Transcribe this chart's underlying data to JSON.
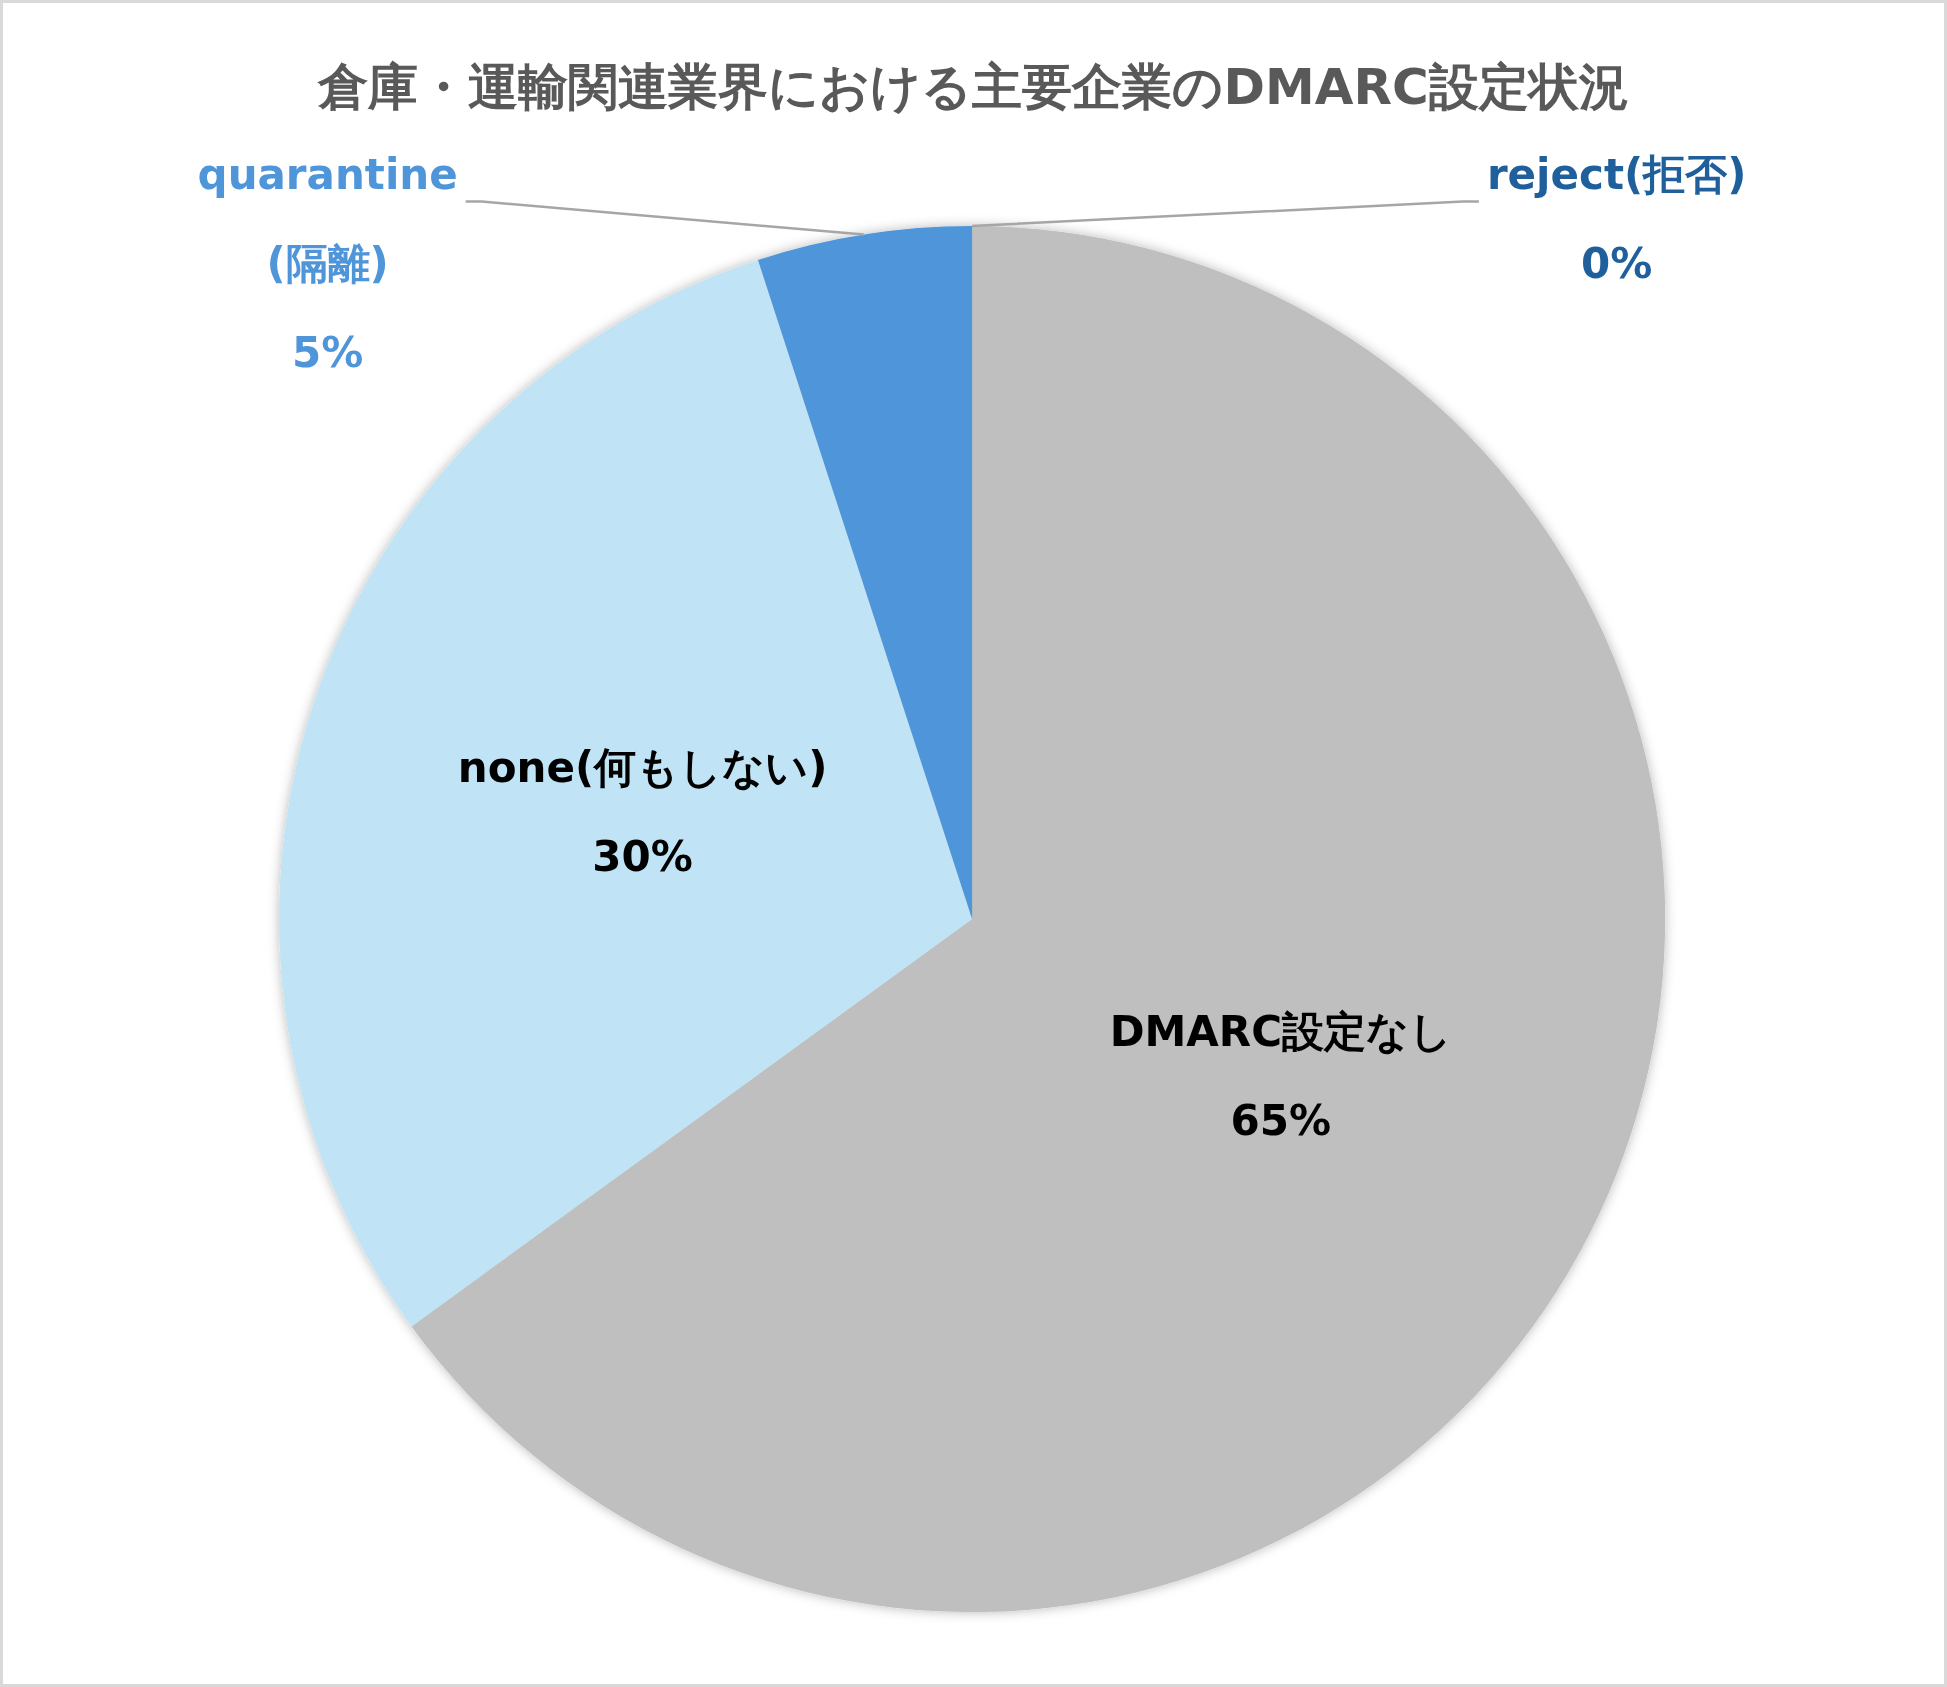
{
  "chart_data": {
    "type": "pie",
    "title": "倉庫・運輸関連業界における主要企業のDMARC設定状況",
    "categories": [
      "reject(拒否)",
      "DMARC設定なし",
      "none(何もしない)",
      "quarantine(隔離)"
    ],
    "values": [
      0,
      65,
      30,
      5
    ],
    "value_labels": [
      "0%",
      "65%",
      "30%",
      "5%"
    ],
    "colors": [
      "#1f5f9b",
      "#bfbfbf",
      "#c0e4f5",
      "#4f95d9"
    ]
  }
}
